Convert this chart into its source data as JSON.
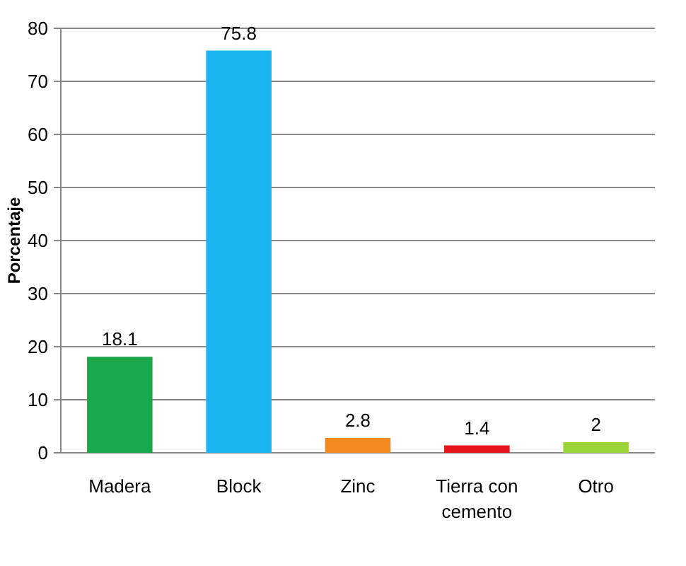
{
  "chart_data": {
    "type": "bar",
    "ylabel": "Porcentaje",
    "categories": [
      "Madera",
      "Block",
      "Zinc",
      "Tierra con cemento",
      "Otro"
    ],
    "values": [
      18.1,
      75.8,
      2.8,
      1.4,
      2
    ],
    "colors": [
      "#1aa84a",
      "#19b5f0",
      "#f08a1e",
      "#e8141c",
      "#9bd33a"
    ],
    "ylim": [
      0,
      80
    ],
    "yticks": [
      0,
      10,
      20,
      30,
      40,
      50,
      60,
      70,
      80
    ],
    "grid": "y",
    "data_labels": true
  }
}
